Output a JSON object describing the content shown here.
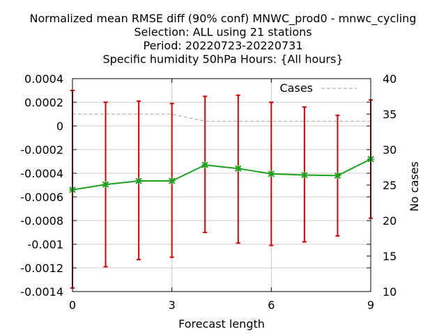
{
  "chart_data": {
    "type": "line",
    "title_lines": [
      "Normalized mean RMSE diff (90% conf) MNWC_prod0 - mnwc_cycling",
      "Selection: ALL using    21 stations",
      "Period: 20220723-20220731",
      "Specific humidity 50hPa   Hours: {All hours}"
    ],
    "xlabel": "Forecast length",
    "ylabel": "",
    "y2label": "No cases",
    "xlim": [
      0,
      9
    ],
    "ylim": [
      -0.0014,
      0.0004
    ],
    "y2lim": [
      10,
      40
    ],
    "xticks": [
      0,
      3,
      6,
      9
    ],
    "yticks": [
      0.0004,
      0.0002,
      0,
      -0.0002,
      -0.0004,
      -0.0006,
      -0.0008,
      -0.001,
      -0.0012,
      -0.0014
    ],
    "ytick_labels": [
      "0.0004",
      "0.0002",
      "0",
      "-0.0002",
      "-0.0004",
      "-0.0006",
      "-0.0008",
      "-0.001",
      "-0.0012",
      "-0.0014"
    ],
    "y2ticks": [
      40,
      35,
      30,
      25,
      20,
      15,
      10
    ],
    "grid": true,
    "legend_position": "top-right",
    "x": [
      0,
      1,
      2,
      3,
      4,
      5,
      6,
      7,
      8,
      9
    ],
    "series": [
      {
        "values": [
          -0.00054,
          -0.000495,
          -0.000465,
          -0.000465,
          -0.00033,
          -0.00036,
          -0.000405,
          -0.000415,
          -0.00042,
          -0.00028
        ],
        "err_low": [
          -0.00137,
          -0.00119,
          -0.00113,
          -0.00111,
          -0.0009,
          -0.00099,
          -0.00101,
          -0.00098,
          -0.00093,
          -0.00078
        ],
        "err_high": [
          0.0003,
          0.0002,
          0.00021,
          0.00019,
          0.00025,
          0.00026,
          0.0002,
          0.00016,
          9e-05,
          0.00022
        ],
        "color": "#1aa31a",
        "error_color": "#dd0000"
      },
      {
        "name": "Cases",
        "axis": "y2",
        "values": [
          35,
          35,
          35,
          35,
          34,
          34,
          34,
          34,
          34,
          34
        ],
        "color": "#a0a0a0"
      }
    ]
  }
}
